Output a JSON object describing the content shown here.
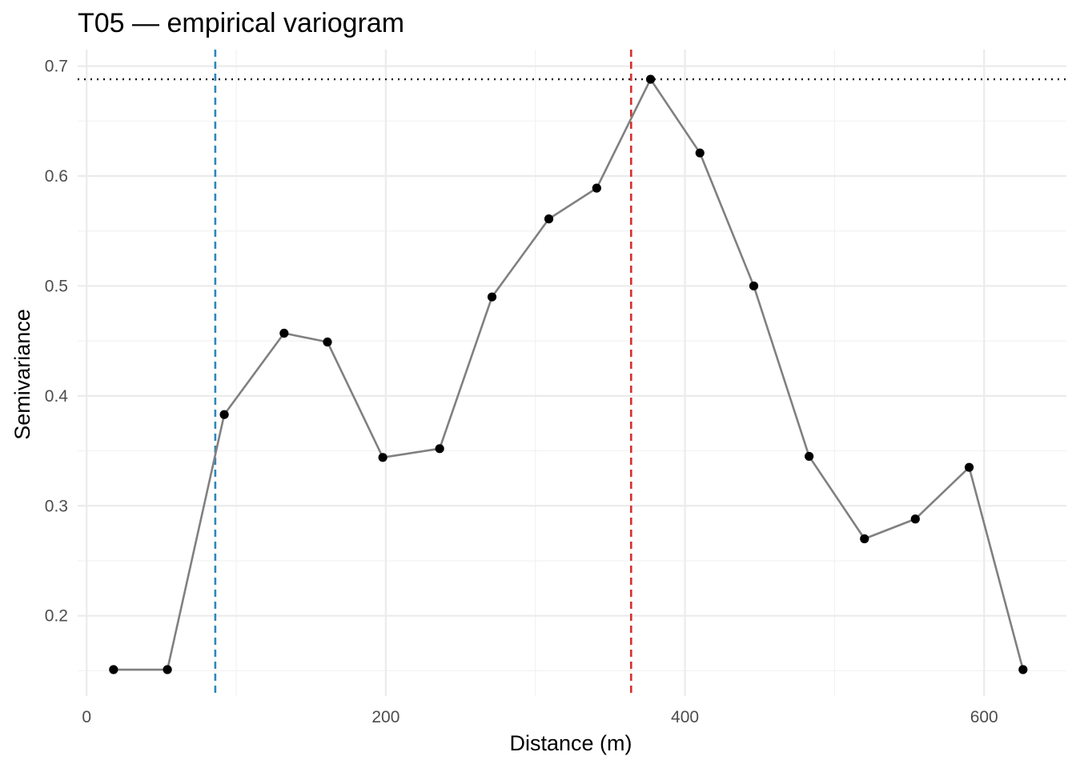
{
  "chart_data": {
    "type": "line",
    "title": "T05 — empirical variogram",
    "xlabel": "Distance (m)",
    "ylabel": "Semivariance",
    "xlim": [
      -6,
      655
    ],
    "ylim": [
      0.127,
      0.715
    ],
    "x_ticks": [
      0,
      200,
      400,
      600
    ],
    "y_ticks": [
      0.2,
      0.3,
      0.4,
      0.5,
      0.6,
      0.7
    ],
    "grid": true,
    "series": [
      {
        "x": [
          18,
          54,
          92,
          132,
          161,
          198,
          236,
          271,
          309,
          341,
          377,
          410,
          446,
          483,
          520,
          554,
          590,
          626
        ],
        "y": [
          0.151,
          0.151,
          0.383,
          0.457,
          0.449,
          0.344,
          0.352,
          0.49,
          0.561,
          0.589,
          0.688,
          0.621,
          0.5,
          0.345,
          0.27,
          0.288,
          0.335,
          0.151
        ],
        "line_color": "#808080",
        "point_color": "#000000"
      }
    ],
    "reference_lines": [
      {
        "orientation": "vertical",
        "x": 86,
        "style": "dashed",
        "color": "#2c87b8"
      },
      {
        "orientation": "vertical",
        "x": 364,
        "style": "dashed",
        "color": "#d7302a"
      },
      {
        "orientation": "horizontal",
        "y": 0.688,
        "style": "dotted",
        "color": "#000000"
      }
    ]
  }
}
